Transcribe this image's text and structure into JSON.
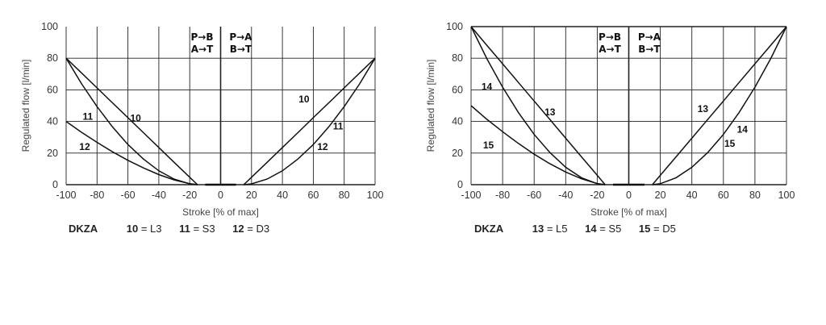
{
  "chart_data": [
    {
      "type": "line",
      "model": "DKZA",
      "xlabel": "Stroke [% of max]",
      "ylabel": "Regulated flow [l/min]",
      "xlim": [
        -100,
        100
      ],
      "ylim": [
        0,
        100
      ],
      "xticks": [
        "-100",
        "-80",
        "-60",
        "-40",
        "-20",
        "0",
        "20",
        "40",
        "60",
        "80",
        "100"
      ],
      "yticks": [
        "0",
        "20",
        "40",
        "60",
        "80",
        "100"
      ],
      "grid": true,
      "flow_labels": {
        "negative": [
          "P→B",
          "A→T"
        ],
        "positive": [
          "P→A",
          "B→T"
        ]
      },
      "legend": [
        {
          "num": "10",
          "eq": " = L3"
        },
        {
          "num": "11",
          "eq": " = S3"
        },
        {
          "num": "12",
          "eq": " = D3"
        }
      ],
      "series": [
        {
          "name": "L3",
          "x": [
            -100,
            -90,
            -80,
            -70,
            -60,
            -50,
            -40,
            -30,
            -20,
            -15
          ],
          "y": [
            80,
            70.6,
            61.2,
            51.8,
            42.4,
            32.9,
            23.5,
            14.1,
            4.7,
            0
          ]
        },
        {
          "name": "S3",
          "x": [
            -100,
            -90,
            -80,
            -70,
            -60,
            -50,
            -40,
            -30,
            -20,
            -15
          ],
          "y": [
            80,
            63.8,
            49.4,
            36.6,
            25.4,
            16.2,
            8.8,
            3.5,
            0.5,
            0
          ]
        },
        {
          "name": "D3",
          "x": [
            -100,
            -90,
            -80,
            -70,
            -60,
            -50,
            -40,
            -30,
            -20,
            -15
          ],
          "y": [
            40,
            33.1,
            26.8,
            20.8,
            15.4,
            10.6,
            6.4,
            3.0,
            0.6,
            0
          ]
        },
        {
          "name": "L3",
          "x": [
            15,
            20,
            30,
            40,
            50,
            60,
            70,
            80,
            90,
            100
          ],
          "y": [
            0,
            4.7,
            14.1,
            23.5,
            32.9,
            42.4,
            51.8,
            61.2,
            70.6,
            80
          ]
        },
        {
          "name": "S3/D3",
          "x": [
            15,
            20,
            30,
            40,
            50,
            60,
            70,
            80,
            90,
            100
          ],
          "y": [
            0,
            0.5,
            3.5,
            8.8,
            16.2,
            25.4,
            36.6,
            49.4,
            63.8,
            80
          ]
        },
        {
          "name": "dead-band",
          "x": [
            -10,
            10
          ],
          "y": [
            0,
            0
          ]
        }
      ],
      "annotations": [
        {
          "text": "11",
          "x": -86,
          "y": 43
        },
        {
          "text": "10",
          "x": -55,
          "y": 42
        },
        {
          "text": "12",
          "x": -88,
          "y": 24
        },
        {
          "text": "10",
          "x": 54,
          "y": 54
        },
        {
          "text": "11",
          "x": 76,
          "y": 37
        },
        {
          "text": "12",
          "x": 66,
          "y": 24
        }
      ]
    },
    {
      "type": "line",
      "model": "DKZA",
      "xlabel": "Stroke [% of max]",
      "ylabel": "Regulated flow [l/min]",
      "xlim": [
        -100,
        100
      ],
      "ylim": [
        0,
        100
      ],
      "xticks": [
        "-100",
        "-80",
        "-60",
        "-40",
        "-20",
        "0",
        "20",
        "40",
        "60",
        "80",
        "100"
      ],
      "yticks": [
        "0",
        "20",
        "40",
        "60",
        "80",
        "100"
      ],
      "grid": true,
      "flow_labels": {
        "negative": [
          "P→B",
          "A→T"
        ],
        "positive": [
          "P→A",
          "B→T"
        ]
      },
      "legend": [
        {
          "num": "13",
          "eq": " = L5"
        },
        {
          "num": "14",
          "eq": " = S5"
        },
        {
          "num": "15",
          "eq": " = D5"
        }
      ],
      "series": [
        {
          "name": "L5",
          "x": [
            -100,
            -90,
            -80,
            -70,
            -60,
            -50,
            -40,
            -30,
            -20,
            -15
          ],
          "y": [
            100,
            88.2,
            76.5,
            64.7,
            52.9,
            41.2,
            29.4,
            17.6,
            5.9,
            0
          ]
        },
        {
          "name": "S5",
          "x": [
            -100,
            -90,
            -80,
            -70,
            -60,
            -50,
            -40,
            -30,
            -20,
            -15
          ],
          "y": [
            100,
            79.8,
            61.7,
            45.7,
            31.8,
            20.3,
            11.0,
            4.4,
            0.6,
            0
          ]
        },
        {
          "name": "D5",
          "x": [
            -100,
            -90,
            -80,
            -70,
            -60,
            -50,
            -40,
            -30,
            -20,
            -15
          ],
          "y": [
            50,
            41.4,
            33.5,
            26.1,
            19.3,
            13.2,
            8.0,
            3.7,
            0.7,
            0
          ]
        },
        {
          "name": "L5",
          "x": [
            15,
            20,
            30,
            40,
            50,
            60,
            70,
            80,
            90,
            100
          ],
          "y": [
            0,
            5.9,
            17.6,
            29.4,
            41.2,
            52.9,
            64.7,
            76.5,
            88.2,
            100
          ]
        },
        {
          "name": "S5/D5",
          "x": [
            15,
            20,
            30,
            40,
            50,
            60,
            70,
            80,
            90,
            100
          ],
          "y": [
            0,
            0.6,
            4.4,
            11.0,
            20.3,
            31.8,
            45.7,
            61.7,
            79.8,
            100
          ]
        },
        {
          "name": "dead-band",
          "x": [
            -10,
            10
          ],
          "y": [
            0,
            0
          ]
        }
      ],
      "annotations": [
        {
          "text": "14",
          "x": -90,
          "y": 62
        },
        {
          "text": "13",
          "x": -50,
          "y": 46
        },
        {
          "text": "15",
          "x": -89,
          "y": 25
        },
        {
          "text": "13",
          "x": 47,
          "y": 48
        },
        {
          "text": "14",
          "x": 72,
          "y": 35
        },
        {
          "text": "15",
          "x": 64,
          "y": 26
        }
      ]
    }
  ]
}
